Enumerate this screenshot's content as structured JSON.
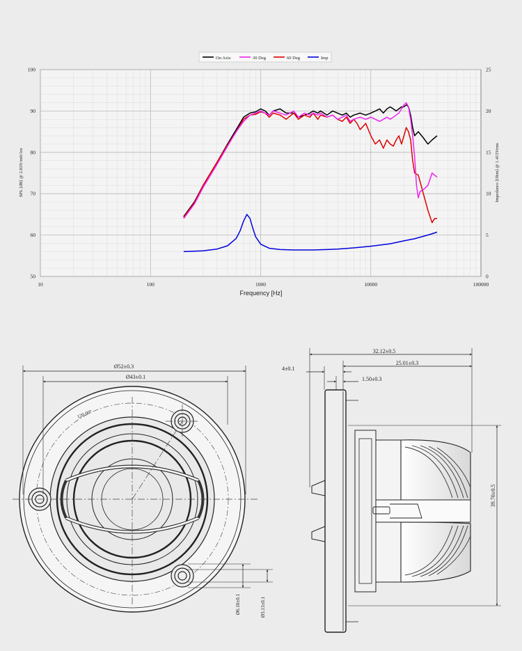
{
  "chart_data": {
    "type": "line",
    "xlabel": "Frequency [Hz]",
    "ylabel": "SPL [dB] @ 2.83V/m0/1m",
    "y2label": "Impedance [Ohm] @ 1.415Vrms",
    "x_scale": "log",
    "xlim": [
      10,
      100000
    ],
    "ylim": [
      50,
      100
    ],
    "y2lim": [
      0,
      25
    ],
    "x_ticks": [
      "10",
      "100",
      "1000",
      "10000",
      "100000"
    ],
    "y_ticks": [
      "50",
      "60",
      "70",
      "80",
      "90",
      "100"
    ],
    "y2_ticks": [
      "0",
      "5",
      "10",
      "15",
      "20",
      "25"
    ],
    "grid": true,
    "legend_position": "top-center",
    "series": [
      {
        "name": "On Axis",
        "color": "#000000",
        "axis": "left",
        "x": [
          200,
          250,
          300,
          400,
          500,
          600,
          700,
          800,
          900,
          1000,
          1100,
          1200,
          1300,
          1500,
          1700,
          2000,
          2200,
          2500,
          2800,
          3000,
          3300,
          3500,
          4000,
          4500,
          5000,
          5500,
          6000,
          6500,
          7000,
          8000,
          9000,
          10000,
          11000,
          12000,
          13000,
          14000,
          15000,
          16000,
          17000,
          18000,
          19000,
          20000,
          21000,
          22000,
          23000,
          24000,
          25000,
          27000,
          30000,
          33000,
          36000,
          40000
        ],
        "y": [
          64.5,
          68,
          72,
          77.5,
          82,
          85.5,
          88.5,
          89.5,
          89.8,
          90.5,
          90,
          89,
          90,
          90.5,
          89.5,
          89.5,
          88.5,
          89,
          89.5,
          90,
          89.5,
          90,
          89,
          90,
          89.5,
          89,
          89.5,
          88.5,
          89,
          89.5,
          89,
          89.5,
          90,
          90.5,
          89.5,
          90.5,
          91,
          90.5,
          90,
          90.5,
          91,
          91,
          91.5,
          91,
          89,
          86,
          84,
          85,
          83.5,
          82,
          83,
          84
        ]
      },
      {
        "name": "30 Deg",
        "color": "#ee22ee",
        "axis": "left",
        "x": [
          200,
          250,
          300,
          400,
          500,
          600,
          700,
          800,
          900,
          1000,
          1100,
          1200,
          1300,
          1500,
          1700,
          2000,
          2200,
          2500,
          2800,
          3000,
          3300,
          3500,
          4000,
          4500,
          5000,
          5500,
          6000,
          6500,
          7000,
          8000,
          9000,
          10000,
          11000,
          12000,
          13000,
          14000,
          15000,
          16000,
          17000,
          18000,
          19000,
          20000,
          21000,
          22000,
          23000,
          24000,
          25000,
          26000,
          27000,
          28000,
          30000,
          33000,
          36000,
          40000
        ],
        "y": [
          64,
          67.5,
          71.5,
          77,
          81.5,
          85,
          87.5,
          89,
          89.5,
          90,
          89.5,
          89,
          90,
          89.5,
          89,
          90,
          88.5,
          89.5,
          89,
          89.5,
          89,
          89.5,
          88.5,
          89,
          88,
          88.5,
          89,
          87.5,
          88,
          88.5,
          88,
          88.5,
          88,
          87.5,
          88,
          88.5,
          88,
          88.5,
          89,
          89.5,
          90.5,
          91.5,
          92,
          91,
          88,
          84,
          79,
          72,
          69,
          70.5,
          71,
          72,
          75,
          74
        ]
      },
      {
        "name": "60 Deg",
        "color": "#dd0000",
        "axis": "left",
        "x": [
          200,
          250,
          300,
          400,
          500,
          600,
          700,
          800,
          900,
          1000,
          1100,
          1200,
          1300,
          1500,
          1700,
          2000,
          2200,
          2500,
          2800,
          3000,
          3300,
          3500,
          4000,
          4500,
          5000,
          5500,
          6000,
          6500,
          7000,
          7500,
          8000,
          9000,
          10000,
          11000,
          12000,
          13000,
          14000,
          15000,
          16000,
          17000,
          18000,
          19000,
          20000,
          21000,
          22000,
          23000,
          24000,
          25000,
          27000,
          30000,
          33000,
          36000,
          38000,
          40000
        ],
        "y": [
          64.3,
          67.8,
          72,
          77.5,
          81.8,
          85,
          88,
          89,
          89.2,
          89.8,
          89.5,
          88.5,
          89.5,
          89,
          88,
          89.5,
          88,
          89,
          88.5,
          89.5,
          88,
          89,
          88.5,
          89,
          88,
          87.5,
          88.5,
          87,
          88,
          87,
          85.5,
          87,
          84,
          82,
          83,
          81,
          83,
          82,
          81.5,
          83,
          84,
          82,
          84,
          86,
          85,
          83,
          78,
          75,
          74.5,
          70,
          66,
          63,
          64,
          64
        ]
      },
      {
        "name": "Imp",
        "color": "#0000dd",
        "axis": "right",
        "x": [
          200,
          300,
          400,
          500,
          600,
          650,
          700,
          750,
          800,
          850,
          900,
          1000,
          1200,
          1500,
          2000,
          3000,
          4000,
          5000,
          7000,
          10000,
          15000,
          20000,
          25000,
          30000,
          35000,
          40000
        ],
        "y": [
          3.0,
          3.1,
          3.3,
          3.7,
          4.6,
          5.5,
          6.7,
          7.5,
          7.0,
          5.8,
          4.8,
          3.9,
          3.4,
          3.25,
          3.2,
          3.2,
          3.25,
          3.3,
          3.45,
          3.65,
          3.95,
          4.3,
          4.55,
          4.85,
          5.1,
          5.35
        ]
      }
    ]
  },
  "drawings": {
    "front_view": {
      "outer_diameter": "Ø52±0.3",
      "mount_diameter": "Ø43±0.1",
      "angle": "120.00°",
      "hole_inner": "Ø6.10±0.1",
      "hole_outer": "Ø3.13±0.1"
    },
    "side_view": {
      "total_depth": "32.12±0.5",
      "flange": "4±0.1",
      "body_depth": "25.01±0.3",
      "step": "1.50±0.3",
      "height": "39.70±0.5"
    }
  }
}
